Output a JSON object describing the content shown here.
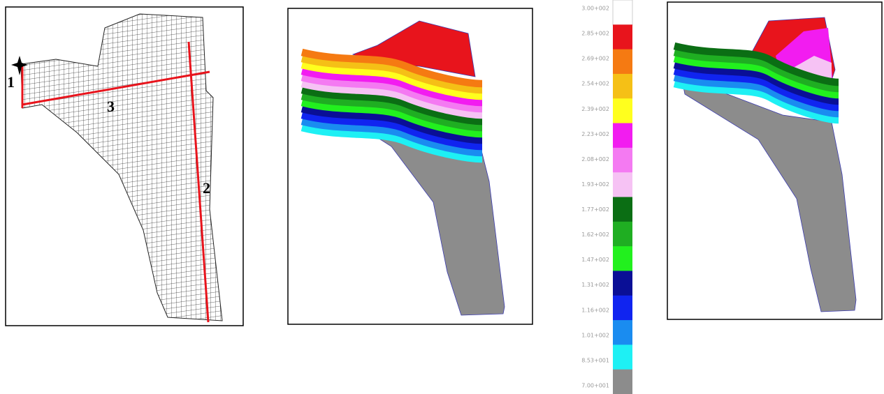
{
  "mesh_panel": {
    "labels": [
      "1",
      "2",
      "3"
    ]
  },
  "colorbar": {
    "labels": [
      "3.00+002",
      "2.85+002",
      "2.69+002",
      "2.54+002",
      "2.39+002",
      "2.23+002",
      "2.08+002",
      "1.93+002",
      "1.77+002",
      "1.62+002",
      "1.47+002",
      "1.31+002",
      "1.16+002",
      "1.01+002",
      "8.53+001",
      "7.00+001"
    ],
    "colors": [
      "#ffffff",
      "#e8141c",
      "#f57a12",
      "#f5c016",
      "#ffff1e",
      "#f21cf0",
      "#f47af2",
      "#f6c2f4",
      "#0b6e14",
      "#1fae22",
      "#22f01e",
      "#0a0f96",
      "#1024f0",
      "#1a8cf0",
      "#1ef0f4",
      "#8c8c8c"
    ]
  }
}
